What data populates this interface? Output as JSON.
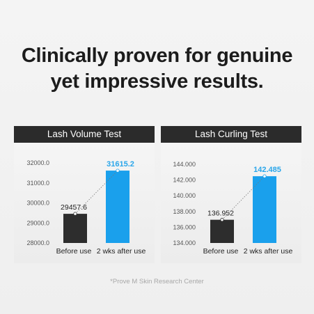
{
  "headline": {
    "line1": "Clinically proven for genuine",
    "line2": "yet impressive results."
  },
  "colors": {
    "before_bar": "#2d2d2d",
    "after_bar": "#1aa0ec",
    "after_label": "#2aa6ea",
    "header_bg": "#2b2b2b"
  },
  "chart_data": [
    {
      "type": "bar",
      "title": "Lash Volume Test",
      "categories": [
        "Before use",
        "2 wks after use"
      ],
      "values": [
        29457.6,
        31615.2
      ],
      "value_labels": [
        "29457.6",
        "31615.2"
      ],
      "ylim": [
        28000,
        32000
      ],
      "yticks": [
        28000,
        29000,
        30000,
        31000,
        32000
      ],
      "ytick_labels": [
        "28000.0",
        "29000.0",
        "30000.0",
        "31000.0",
        "32000.0"
      ],
      "grid": false,
      "trend_line": "dotted"
    },
    {
      "type": "bar",
      "title": "Lash Curling Test",
      "categories": [
        "Before use",
        "2 wks after use"
      ],
      "values": [
        136.952,
        142.485
      ],
      "value_labels": [
        "136.952",
        "142.485"
      ],
      "ylim": [
        134,
        144
      ],
      "yticks": [
        134,
        136,
        138,
        140,
        142,
        144
      ],
      "ytick_labels": [
        "134.000",
        "136.000",
        "138.000",
        "140.000",
        "142.000",
        "144.000"
      ],
      "grid": false,
      "trend_line": "dotted"
    }
  ],
  "footnote": "*Prove M Skin Research Center"
}
